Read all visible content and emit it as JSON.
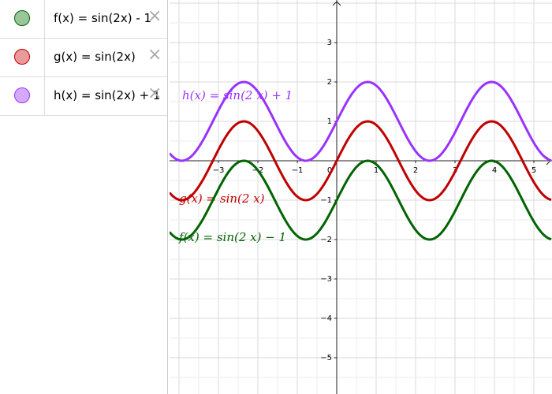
{
  "algebra_view": {
    "items": [
      {
        "text": "f(x) = sin(2x) - 1",
        "color": "#99c799",
        "stroke": "#006400"
      },
      {
        "text": "g(x) = sin(2x)",
        "color": "#ea9a9a",
        "stroke": "#c00000"
      },
      {
        "text": "h(x) = sin(2x) + 1",
        "color": "#d4aaff",
        "stroke": "#9933ff"
      }
    ]
  },
  "graphics": {
    "xlim": [
      -4.24,
      5.46
    ],
    "ylim": [
      -5.92,
      4.08
    ],
    "grid_step": 0.5,
    "xticks": [
      {
        "value": -3,
        "label": "−3"
      },
      {
        "value": -2,
        "label": "−2"
      },
      {
        "value": -1,
        "label": "−1"
      },
      0,
      1,
      2,
      3,
      4,
      5
    ],
    "yticks": [
      {
        "value": -5,
        "label": "−5"
      },
      {
        "value": -4,
        "label": "−4"
      },
      {
        "value": -3,
        "label": "−3"
      },
      {
        "value": -2,
        "label": "−2"
      },
      {
        "value": -1,
        "label": "−1"
      },
      1,
      2,
      3
    ],
    "functions": [
      {
        "label": "h(x) = sin(2 x) + 1",
        "color": "#9933ff",
        "coefficient": 2,
        "offset": 1
      },
      {
        "label": "g(x) = sin(2 x)",
        "color": "#c00000",
        "coefficient": 2,
        "offset": 0
      },
      {
        "label": "f(x) = sin(2 x) − 1",
        "color": "#006400",
        "coefficient": 2,
        "offset": -1
      }
    ]
  }
}
